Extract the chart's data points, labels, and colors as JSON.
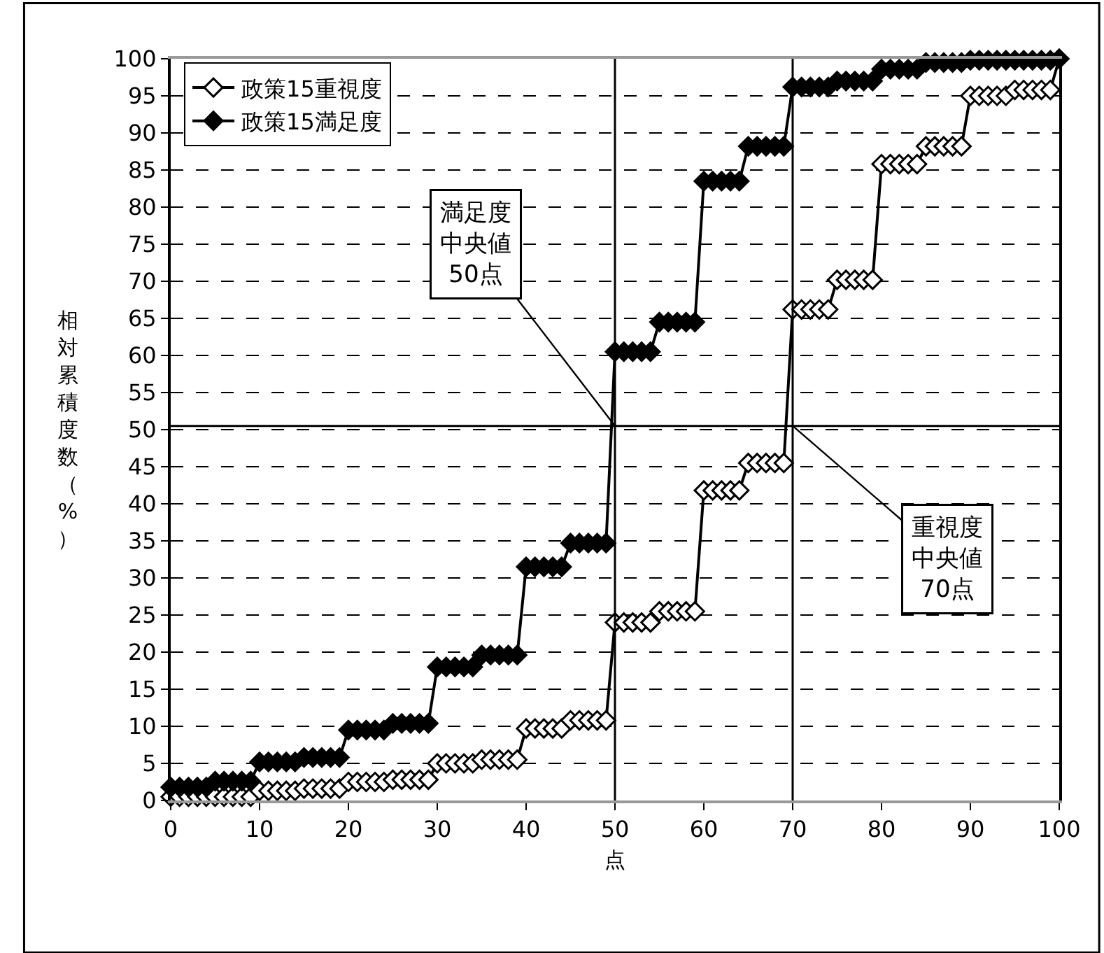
{
  "chart_data": {
    "type": "line",
    "xlabel": "点",
    "ylabel": "相対累積度数（%）",
    "x": [
      0,
      1,
      2,
      3,
      4,
      5,
      6,
      7,
      8,
      9,
      10,
      11,
      12,
      13,
      14,
      15,
      16,
      17,
      18,
      19,
      20,
      21,
      22,
      23,
      24,
      25,
      26,
      27,
      28,
      29,
      30,
      31,
      32,
      33,
      34,
      35,
      36,
      37,
      38,
      39,
      40,
      41,
      42,
      43,
      44,
      45,
      46,
      47,
      48,
      49,
      50,
      51,
      52,
      53,
      54,
      55,
      56,
      57,
      58,
      59,
      60,
      61,
      62,
      63,
      64,
      65,
      66,
      67,
      68,
      69,
      70,
      71,
      72,
      73,
      74,
      75,
      76,
      77,
      78,
      79,
      80,
      81,
      82,
      83,
      84,
      85,
      86,
      87,
      88,
      89,
      90,
      91,
      92,
      93,
      94,
      95,
      96,
      97,
      98,
      99,
      100
    ],
    "series": [
      {
        "name": "政策15重視度",
        "color": "#000000",
        "values": [
          0.5,
          0.5,
          0.5,
          0.5,
          0.5,
          0.5,
          0.5,
          0.5,
          0.5,
          0.5,
          1.3,
          1.3,
          1.3,
          1.3,
          1.3,
          1.6,
          1.6,
          1.6,
          1.6,
          1.6,
          2.5,
          2.5,
          2.5,
          2.5,
          2.5,
          2.8,
          2.8,
          2.8,
          2.8,
          2.8,
          5,
          5,
          5,
          5,
          5,
          5.5,
          5.5,
          5.5,
          5.5,
          5.5,
          9.7,
          9.7,
          9.7,
          9.7,
          9.7,
          10.8,
          10.8,
          10.8,
          10.8,
          10.8,
          24,
          24,
          24,
          24,
          24,
          25.5,
          25.5,
          25.5,
          25.5,
          25.5,
          41.8,
          41.8,
          41.8,
          41.8,
          41.8,
          45.5,
          45.5,
          45.5,
          45.5,
          45.5,
          66.2,
          66.2,
          66.2,
          66.2,
          66.2,
          70.2,
          70.2,
          70.2,
          70.2,
          70.2,
          85.8,
          85.8,
          85.8,
          85.8,
          85.8,
          88.2,
          88.2,
          88.2,
          88.2,
          88.2,
          95,
          95,
          95,
          95,
          95,
          95.8,
          95.8,
          95.8,
          95.8,
          95.8,
          100
        ]
      },
      {
        "name": "政策15満足度",
        "color": "#000000",
        "values": [
          1.8,
          1.8,
          1.8,
          1.8,
          1.8,
          2.6,
          2.6,
          2.6,
          2.6,
          2.6,
          5.2,
          5.2,
          5.2,
          5.2,
          5.2,
          5.8,
          5.8,
          5.8,
          5.8,
          5.8,
          9.5,
          9.5,
          9.5,
          9.5,
          9.5,
          10.4,
          10.4,
          10.4,
          10.4,
          10.4,
          18,
          18,
          18,
          18,
          18,
          19.6,
          19.6,
          19.6,
          19.6,
          19.6,
          31.5,
          31.5,
          31.5,
          31.5,
          31.5,
          34.7,
          34.7,
          34.7,
          34.7,
          34.7,
          60.5,
          60.5,
          60.5,
          60.5,
          60.5,
          64.5,
          64.5,
          64.5,
          64.5,
          64.5,
          83.5,
          83.5,
          83.5,
          83.5,
          83.5,
          88.2,
          88.2,
          88.2,
          88.2,
          88.2,
          96.2,
          96.2,
          96.2,
          96.2,
          96.2,
          97,
          97,
          97,
          97,
          97,
          98.6,
          98.6,
          98.6,
          98.6,
          98.6,
          99.5,
          99.5,
          99.5,
          99.5,
          99.5,
          99.8,
          99.8,
          99.8,
          99.8,
          99.8,
          99.8,
          99.8,
          99.8,
          99.8,
          99.8,
          100
        ]
      }
    ],
    "marker": "diamond",
    "line_style": "solid",
    "xlim": [
      0,
      100
    ],
    "xticks": [
      0,
      10,
      20,
      30,
      40,
      50,
      60,
      70,
      80,
      90,
      100
    ],
    "ylim": [
      0,
      100
    ],
    "yticks": [
      0,
      5,
      10,
      15,
      20,
      25,
      30,
      35,
      40,
      45,
      50,
      55,
      60,
      65,
      70,
      75,
      80,
      85,
      90,
      95,
      100
    ],
    "grid": "y",
    "legend": "top left",
    "ref_lines": [
      {
        "axis": "x",
        "value": 50
      },
      {
        "axis": "x",
        "value": 70
      },
      {
        "axis": "y",
        "value": 50.5
      }
    ],
    "annotations": [
      {
        "text": "満足度中央値50点",
        "x": 50,
        "y": 50.5
      },
      {
        "text": "重視度中央値70点",
        "x": 70,
        "y": 50.5
      }
    ]
  }
}
